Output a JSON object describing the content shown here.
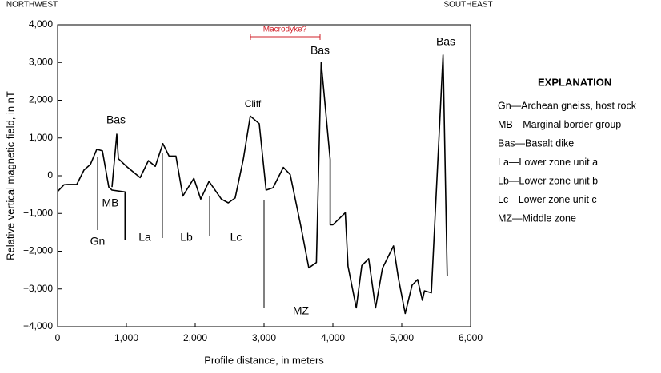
{
  "chart_data": {
    "type": "line",
    "y_label": "Relative vertical magnetic field, in nT",
    "x_label": "Profile distance, in meters",
    "x": [
      0,
      93,
      151,
      279,
      384,
      477,
      570,
      651,
      744,
      791,
      980,
      980,
      null,
      791,
      860,
      884,
      1000,
      1200,
      1320,
      1420,
      1530,
      1620,
      1720,
      1820,
      1980,
      2080,
      2200,
      2380,
      2480,
      2580,
      2700,
      2800,
      2930,
      3030,
      3130,
      3280,
      3380,
      3530,
      3650,
      3760,
      3830,
      3960,
      3960,
      4000,
      4180,
      4220,
      4340,
      4420,
      4520,
      4620,
      4720,
      4880,
      4950,
      5050,
      5150,
      5230,
      5300,
      5330,
      5430,
      5600,
      5660
    ],
    "series": [
      {
        "color": "#000000",
        "values": [
          -420,
          -240,
          -230,
          -230,
          150,
          300,
          700,
          660,
          -300,
          -380,
          -430,
          -1700,
          null,
          -300,
          1100,
          450,
          250,
          -50,
          400,
          250,
          850,
          520,
          520,
          -540,
          -70,
          -620,
          -150,
          -620,
          -720,
          -590,
          450,
          1580,
          1380,
          -380,
          -320,
          220,
          30,
          -1300,
          -2440,
          -2300,
          3000,
          430,
          -1300,
          -1300,
          -980,
          -2400,
          -3500,
          -2380,
          -2200,
          -3500,
          -2450,
          -1860,
          -2700,
          -3650,
          -2900,
          -2750,
          -3300,
          -3050,
          -3100,
          3200,
          -2650
        ]
      }
    ],
    "xlim": [
      0,
      6000
    ],
    "xticks": [
      0,
      {
        "value": 1000,
        "label": "1,000"
      },
      {
        "value": 2000,
        "label": "2,000"
      },
      {
        "value": 3000,
        "label": "3,000"
      },
      {
        "value": 4000,
        "label": "4,000"
      },
      {
        "value": 5000,
        "label": "5,000"
      },
      {
        "value": 6000,
        "label": "6,000"
      }
    ],
    "ylim": [
      -4000,
      4000
    ],
    "yticks": [
      {
        "value": -4000,
        "label": "−4,000"
      },
      {
        "value": -3000,
        "label": "−3,000"
      },
      {
        "value": -2000,
        "label": "−2,000"
      },
      {
        "value": -1000,
        "label": "−1,000"
      },
      0,
      {
        "value": 1000,
        "label": "1,000"
      },
      {
        "value": 2000,
        "label": "2,000"
      },
      {
        "value": 3000,
        "label": "3,000"
      },
      {
        "value": 4000,
        "label": "4,000"
      }
    ],
    "annotations": [
      "NORTHWEST",
      "SOUTHEAST",
      "Macrodyke?",
      "Bas",
      "Cliff",
      "Bas",
      "Bas",
      "MB",
      "Gn",
      "La",
      "Lb",
      "Lc",
      "MZ"
    ],
    "explanation": {
      "title": "EXPLANATION",
      "items": [
        "Gn—Archean gneiss, host rock",
        "MB—Marginal border group",
        "Bas—Basalt dike",
        "La—Lower zone unit a",
        "Lb—Lower zone unit b",
        "Lc—Lower zone unit c",
        "MZ—Middle zone"
      ]
    }
  }
}
